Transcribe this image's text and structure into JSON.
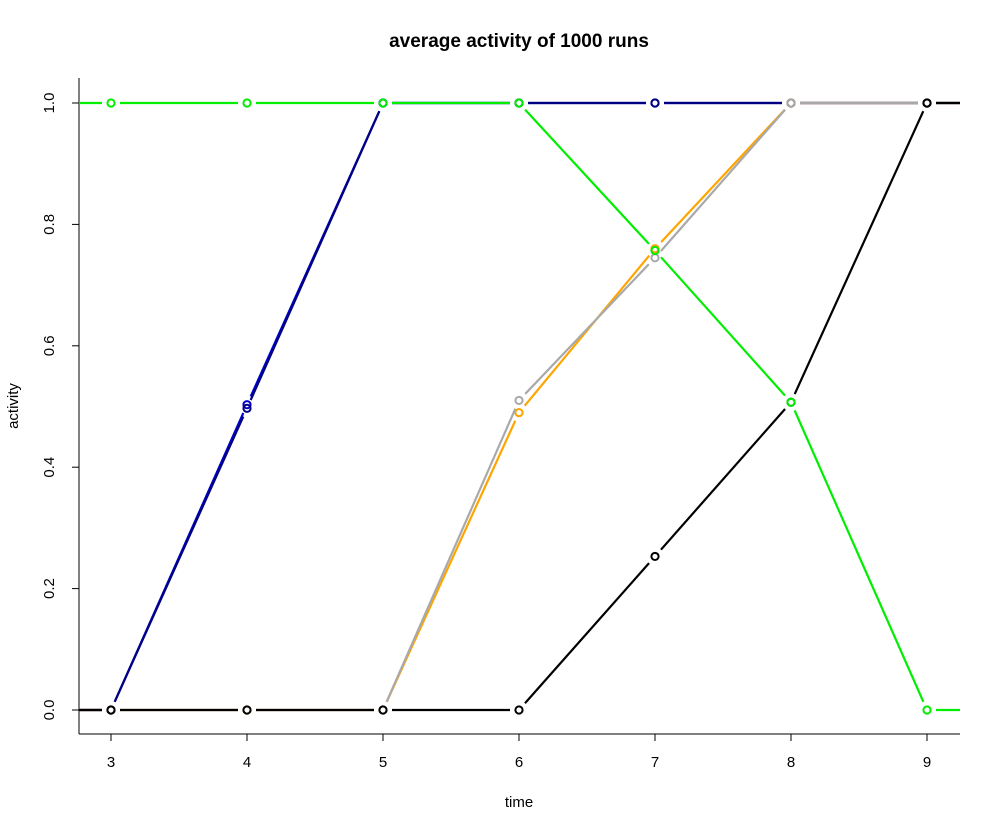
{
  "chart_data": {
    "type": "line",
    "title": "average activity of 1000 runs",
    "xlabel": "time",
    "ylabel": "activity",
    "xlim": [
      3,
      9
    ],
    "ylim": [
      0,
      1
    ],
    "x_ticks": [
      "3",
      "4",
      "5",
      "6",
      "7",
      "8",
      "9"
    ],
    "y_ticks": [
      "0.0",
      "0.2",
      "0.4",
      "0.6",
      "0.8",
      "1.0"
    ],
    "grid": false,
    "legend": "none",
    "x": [
      3,
      4,
      5,
      6,
      7,
      8,
      9
    ],
    "series": [
      {
        "color": "#0000cd",
        "values": [
          0,
          0.503,
          1,
          1,
          1,
          1,
          1
        ]
      },
      {
        "color": "#000080",
        "values": [
          0,
          0.497,
          1,
          1,
          1,
          1,
          1
        ]
      },
      {
        "color": "#ffa500",
        "values": [
          0,
          0,
          0,
          0.49,
          0.76,
          1,
          1
        ]
      },
      {
        "color": "#a9a9a9",
        "values": [
          0,
          0,
          0,
          0.51,
          0.745,
          1,
          1
        ]
      },
      {
        "color": "#000000",
        "values": [
          0,
          0,
          0,
          0,
          0.253,
          0.507,
          1
        ]
      },
      {
        "color": "#00ee00",
        "values": [
          1,
          1,
          1,
          1,
          0.757,
          0.507,
          0
        ]
      }
    ]
  }
}
